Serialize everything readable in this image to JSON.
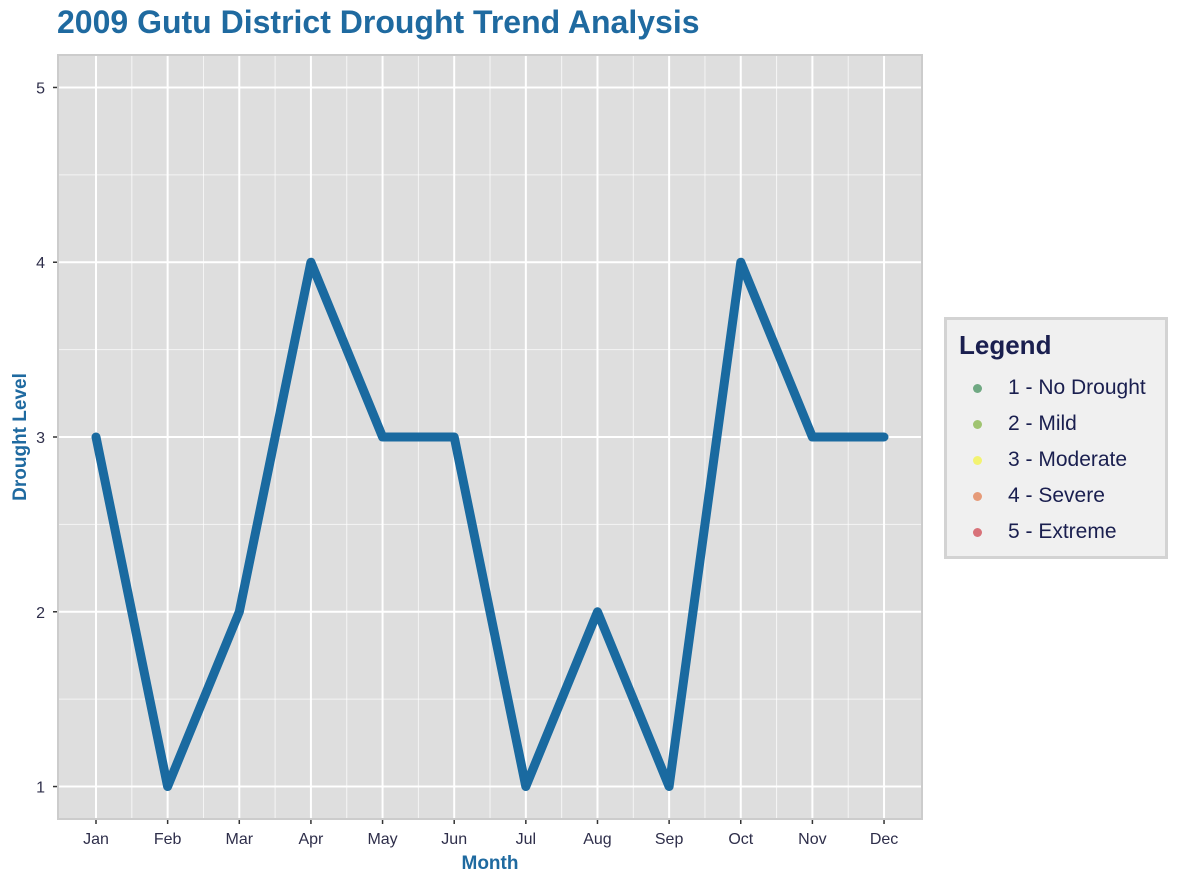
{
  "title": "2009 Gutu District Drought Trend Analysis",
  "chart_data": {
    "type": "line",
    "title": "2009 Gutu District Drought Trend Analysis",
    "xlabel": "Month",
    "ylabel": "Drought Level",
    "categories": [
      "Jan",
      "Feb",
      "Mar",
      "Apr",
      "May",
      "Jun",
      "Jul",
      "Aug",
      "Sep",
      "Oct",
      "Nov",
      "Dec"
    ],
    "series": [
      {
        "name": "Drought Level",
        "values": [
          3,
          1,
          2,
          4,
          3,
          3,
          1,
          2,
          1,
          4,
          3,
          3
        ],
        "color": "#1a6aa0"
      }
    ],
    "yticks": [
      1,
      2,
      3,
      4,
      5
    ],
    "ylim": [
      0.82,
      5.18
    ],
    "grid": true,
    "legend_position": "right"
  },
  "legend": {
    "title": "Legend",
    "items": [
      {
        "label": "1 - No Drought",
        "color": "#1a7a3a"
      },
      {
        "label": "2 - Mild",
        "color": "#6aa61c"
      },
      {
        "label": "3 - Moderate",
        "color": "#f5f51c"
      },
      {
        "label": "4 - Severe",
        "color": "#e0622a"
      },
      {
        "label": "5 - Extreme",
        "color": "#c81e2a"
      }
    ]
  },
  "colors": {
    "panel_bg": "#dedede",
    "panel_border": "#cccccc",
    "grid": "#ffffff",
    "accent": "#1f6aa0"
  }
}
